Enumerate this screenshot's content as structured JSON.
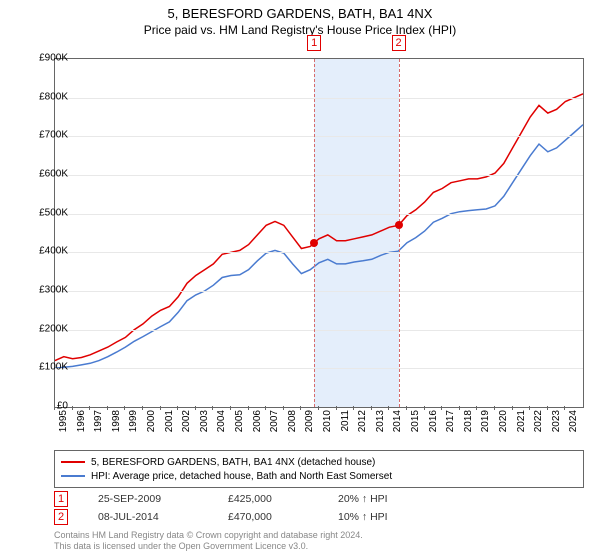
{
  "title": {
    "main": "5, BERESFORD GARDENS, BATH, BA1 4NX",
    "sub": "Price paid vs. HM Land Registry's House Price Index (HPI)"
  },
  "chart": {
    "type": "line",
    "background_color": "#ffffff",
    "grid_color": "#e8e8e8",
    "axis_color": "#666666",
    "x_start_year": 1995,
    "x_end_year": 2025,
    "ylim": [
      0,
      900000
    ],
    "ytick_step": 100000,
    "y_tick_labels": [
      "£0",
      "£100K",
      "£200K",
      "£300K",
      "£400K",
      "£500K",
      "£600K",
      "£700K",
      "£800K",
      "£900K"
    ],
    "x_tick_labels": [
      "1995",
      "1996",
      "1997",
      "1998",
      "1999",
      "2000",
      "2001",
      "2002",
      "2003",
      "2004",
      "2005",
      "2006",
      "2007",
      "2008",
      "2009",
      "2010",
      "2011",
      "2012",
      "2013",
      "2014",
      "2015",
      "2016",
      "2017",
      "2018",
      "2019",
      "2020",
      "2021",
      "2022",
      "2023",
      "2024"
    ],
    "highlight_band": {
      "from_year": 2009.73,
      "to_year": 2014.52
    },
    "series": [
      {
        "name": "5, BERESFORD GARDENS, BATH, BA1 4NX (detached house)",
        "color": "#e00000",
        "line_width": 1.5,
        "points": [
          [
            1995.0,
            120000
          ],
          [
            1995.5,
            130000
          ],
          [
            1996.0,
            125000
          ],
          [
            1996.5,
            128000
          ],
          [
            1997.0,
            135000
          ],
          [
            1997.5,
            145000
          ],
          [
            1998.0,
            155000
          ],
          [
            1998.5,
            168000
          ],
          [
            1999.0,
            180000
          ],
          [
            1999.5,
            200000
          ],
          [
            2000.0,
            215000
          ],
          [
            2000.5,
            235000
          ],
          [
            2001.0,
            250000
          ],
          [
            2001.5,
            260000
          ],
          [
            2002.0,
            285000
          ],
          [
            2002.5,
            320000
          ],
          [
            2003.0,
            340000
          ],
          [
            2003.5,
            355000
          ],
          [
            2004.0,
            370000
          ],
          [
            2004.5,
            395000
          ],
          [
            2005.0,
            400000
          ],
          [
            2005.5,
            405000
          ],
          [
            2006.0,
            420000
          ],
          [
            2006.5,
            445000
          ],
          [
            2007.0,
            470000
          ],
          [
            2007.5,
            480000
          ],
          [
            2008.0,
            470000
          ],
          [
            2008.5,
            440000
          ],
          [
            2009.0,
            410000
          ],
          [
            2009.5,
            415000
          ],
          [
            2009.73,
            425000
          ],
          [
            2010.0,
            435000
          ],
          [
            2010.5,
            445000
          ],
          [
            2011.0,
            430000
          ],
          [
            2011.5,
            430000
          ],
          [
            2012.0,
            435000
          ],
          [
            2012.5,
            440000
          ],
          [
            2013.0,
            445000
          ],
          [
            2013.5,
            455000
          ],
          [
            2014.0,
            465000
          ],
          [
            2014.52,
            470000
          ],
          [
            2015.0,
            495000
          ],
          [
            2015.5,
            510000
          ],
          [
            2016.0,
            530000
          ],
          [
            2016.5,
            555000
          ],
          [
            2017.0,
            565000
          ],
          [
            2017.5,
            580000
          ],
          [
            2018.0,
            585000
          ],
          [
            2018.5,
            590000
          ],
          [
            2019.0,
            590000
          ],
          [
            2019.5,
            595000
          ],
          [
            2020.0,
            605000
          ],
          [
            2020.5,
            630000
          ],
          [
            2021.0,
            670000
          ],
          [
            2021.5,
            710000
          ],
          [
            2022.0,
            750000
          ],
          [
            2022.5,
            780000
          ],
          [
            2023.0,
            760000
          ],
          [
            2023.5,
            770000
          ],
          [
            2024.0,
            790000
          ],
          [
            2024.5,
            800000
          ],
          [
            2025.0,
            810000
          ]
        ]
      },
      {
        "name": "HPI: Average price, detached house, Bath and North East Somerset",
        "color": "#4a7bd0",
        "line_width": 1.5,
        "points": [
          [
            1995.0,
            100000
          ],
          [
            1995.5,
            103000
          ],
          [
            1996.0,
            105000
          ],
          [
            1996.5,
            109000
          ],
          [
            1997.0,
            113000
          ],
          [
            1997.5,
            120000
          ],
          [
            1998.0,
            130000
          ],
          [
            1998.5,
            142000
          ],
          [
            1999.0,
            155000
          ],
          [
            1999.5,
            170000
          ],
          [
            2000.0,
            182000
          ],
          [
            2000.5,
            195000
          ],
          [
            2001.0,
            208000
          ],
          [
            2001.5,
            220000
          ],
          [
            2002.0,
            245000
          ],
          [
            2002.5,
            275000
          ],
          [
            2003.0,
            290000
          ],
          [
            2003.5,
            300000
          ],
          [
            2004.0,
            315000
          ],
          [
            2004.5,
            335000
          ],
          [
            2005.0,
            340000
          ],
          [
            2005.5,
            342000
          ],
          [
            2006.0,
            355000
          ],
          [
            2006.5,
            378000
          ],
          [
            2007.0,
            398000
          ],
          [
            2007.5,
            405000
          ],
          [
            2008.0,
            398000
          ],
          [
            2008.5,
            370000
          ],
          [
            2009.0,
            345000
          ],
          [
            2009.5,
            355000
          ],
          [
            2010.0,
            373000
          ],
          [
            2010.5,
            382000
          ],
          [
            2011.0,
            370000
          ],
          [
            2011.5,
            370000
          ],
          [
            2012.0,
            375000
          ],
          [
            2012.5,
            378000
          ],
          [
            2013.0,
            382000
          ],
          [
            2013.5,
            392000
          ],
          [
            2014.0,
            400000
          ],
          [
            2014.5,
            403000
          ],
          [
            2015.0,
            425000
          ],
          [
            2015.5,
            438000
          ],
          [
            2016.0,
            455000
          ],
          [
            2016.5,
            478000
          ],
          [
            2017.0,
            488000
          ],
          [
            2017.5,
            500000
          ],
          [
            2018.0,
            505000
          ],
          [
            2018.5,
            508000
          ],
          [
            2019.0,
            510000
          ],
          [
            2019.5,
            512000
          ],
          [
            2020.0,
            520000
          ],
          [
            2020.5,
            545000
          ],
          [
            2021.0,
            580000
          ],
          [
            2021.5,
            615000
          ],
          [
            2022.0,
            650000
          ],
          [
            2022.5,
            680000
          ],
          [
            2023.0,
            660000
          ],
          [
            2023.5,
            670000
          ],
          [
            2024.0,
            690000
          ],
          [
            2024.5,
            710000
          ],
          [
            2025.0,
            730000
          ]
        ]
      }
    ],
    "sale_markers": [
      {
        "num": "1",
        "year": 2009.73,
        "value": 425000,
        "color": "#e00000"
      },
      {
        "num": "2",
        "year": 2014.52,
        "value": 470000,
        "color": "#e00000"
      }
    ]
  },
  "legend": {
    "items": [
      {
        "color": "#e00000",
        "label": "5, BERESFORD GARDENS, BATH, BA1 4NX (detached house)"
      },
      {
        "color": "#4a7bd0",
        "label": "HPI: Average price, detached house, Bath and North East Somerset"
      }
    ]
  },
  "sales": [
    {
      "num": "1",
      "date": "25-SEP-2009",
      "price": "£425,000",
      "hpi_diff": "20% ↑ HPI"
    },
    {
      "num": "2",
      "date": "08-JUL-2014",
      "price": "£470,000",
      "hpi_diff": "10% ↑ HPI"
    }
  ],
  "footer": {
    "line1": "Contains HM Land Registry data © Crown copyright and database right 2024.",
    "line2": "This data is licensed under the Open Government Licence v3.0."
  }
}
